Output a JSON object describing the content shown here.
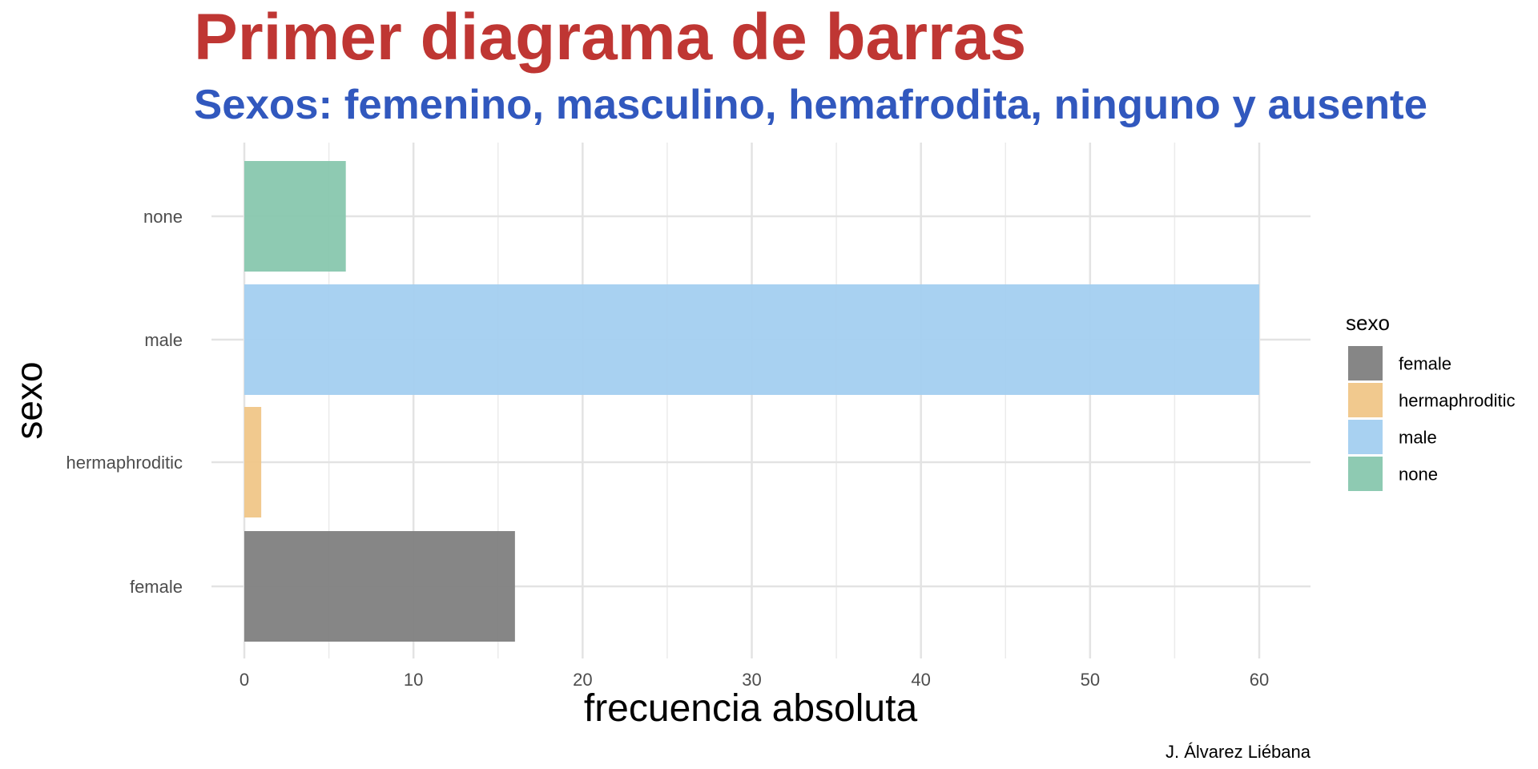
{
  "chart_data": {
    "type": "bar",
    "orientation": "horizontal",
    "title": "Primer diagrama de barras",
    "subtitle": "Sexos: femenino, masculino, hemafrodita, ninguno y ausente",
    "xlabel": "frecuencia absoluta",
    "ylabel": "sexo",
    "caption": "J. Álvarez Liébana",
    "categories": [
      "female",
      "hermaphroditic",
      "male",
      "none"
    ],
    "values": [
      16,
      1,
      60,
      6
    ],
    "colors": [
      "#808080",
      "#F0C688",
      "#A3CFF0",
      "#88C7AE"
    ],
    "xlim": [
      0,
      63
    ],
    "xticks": [
      0,
      10,
      20,
      30,
      40,
      50,
      60
    ],
    "grid": true,
    "legend": {
      "title": "sexo",
      "position": "right",
      "entries": [
        "female",
        "hermaphroditic",
        "male",
        "none"
      ]
    },
    "title_color": "#BF3633",
    "subtitle_color": "#3158BE"
  }
}
